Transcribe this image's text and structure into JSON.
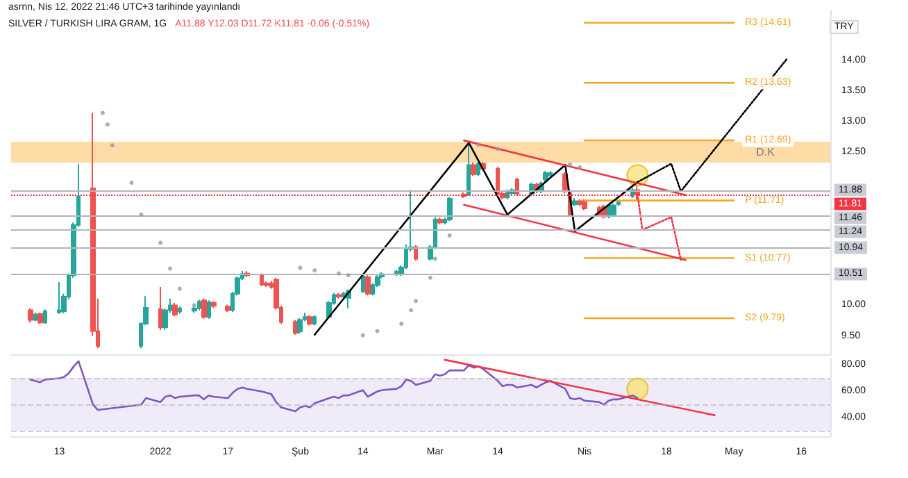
{
  "chart_data": [
    {
      "type": "candlestick",
      "title": "SILVER / TURKISH LIRA GRAM, 1G",
      "subtitle": "A11.88 Y12.03 D11.72 K11.81 -0.06 (-0.51%)",
      "ylabel": "TRY",
      "annotations": [
        "asrnn, Nis 12, 2022 21:46 UTC+3 tarihinde yayınlandı"
      ],
      "x": [
        "2021-12-07",
        "2021-12-08",
        "2021-12-09",
        "2021-12-10",
        "2021-12-13",
        "2021-12-14",
        "2021-12-15",
        "2021-12-16",
        "2021-12-17",
        "2021-12-20",
        "2021-12-21",
        "2021-12-30",
        "2021-12-31",
        "2022-01-03",
        "2022-01-04",
        "2022-01-05",
        "2022-01-06",
        "2022-01-07",
        "2022-01-10",
        "2022-01-11",
        "2022-01-12",
        "2022-01-13",
        "2022-01-14",
        "2022-01-17",
        "2022-01-18",
        "2022-01-19",
        "2022-01-20",
        "2022-01-21",
        "2022-01-24",
        "2022-01-25",
        "2022-01-26",
        "2022-01-27",
        "2022-01-28",
        "2022-01-31",
        "2022-02-01",
        "2022-02-02",
        "2022-02-03",
        "2022-02-04",
        "2022-02-07",
        "2022-02-08",
        "2022-02-09",
        "2022-02-10",
        "2022-02-11",
        "2022-02-14",
        "2022-02-15",
        "2022-02-16",
        "2022-02-17",
        "2022-02-18",
        "2022-02-21",
        "2022-02-22",
        "2022-02-23",
        "2022-02-24",
        "2022-02-25",
        "2022-02-28",
        "2022-03-01",
        "2022-03-02",
        "2022-03-03",
        "2022-03-04",
        "2022-03-07",
        "2022-03-08",
        "2022-03-09",
        "2022-03-10",
        "2022-03-11",
        "2022-03-14",
        "2022-03-15",
        "2022-03-16",
        "2022-03-17",
        "2022-03-18",
        "2022-03-21",
        "2022-03-22",
        "2022-03-23",
        "2022-03-24",
        "2022-03-25",
        "2022-03-28",
        "2022-03-29",
        "2022-03-30",
        "2022-03-31",
        "2022-04-01",
        "2022-04-04",
        "2022-04-05",
        "2022-04-06",
        "2022-04-07",
        "2022-04-08",
        "2022-04-11",
        "2022-04-12"
      ],
      "ohlc": [
        [
          9.92,
          9.95,
          9.72,
          9.76
        ],
        [
          9.76,
          9.88,
          9.74,
          9.85
        ],
        [
          9.86,
          9.88,
          9.7,
          9.72
        ],
        [
          9.72,
          9.93,
          9.7,
          9.9
        ],
        [
          9.89,
          10.38,
          9.86,
          9.92
        ],
        [
          9.9,
          10.19,
          9.87,
          10.14
        ],
        [
          10.14,
          10.52,
          10.1,
          10.49
        ],
        [
          10.49,
          11.35,
          10.45,
          11.31
        ],
        [
          11.31,
          12.31,
          11.28,
          11.78
        ],
        [
          11.91,
          13.14,
          9.5,
          9.58
        ],
        [
          9.58,
          10.11,
          9.3,
          9.34
        ],
        [
          9.34,
          9.72,
          9.3,
          9.7
        ],
        [
          9.7,
          10.15,
          9.68,
          9.96
        ],
        [
          9.94,
          10.3,
          9.6,
          9.64
        ],
        [
          9.64,
          9.95,
          9.6,
          9.92
        ],
        [
          9.92,
          10.11,
          9.88,
          10.0
        ],
        [
          10.0,
          10.04,
          9.82,
          9.85
        ],
        [
          9.9,
          9.98,
          9.86,
          9.95
        ],
        [
          9.91,
          9.98,
          9.88,
          9.95
        ],
        [
          9.95,
          10.09,
          9.92,
          10.06
        ],
        [
          10.08,
          10.11,
          9.78,
          9.81
        ],
        [
          9.81,
          10.08,
          9.78,
          10.05
        ],
        [
          10.04,
          10.07,
          9.96,
          9.99
        ],
        [
          9.98,
          10.01,
          9.89,
          9.92
        ],
        [
          9.92,
          10.22,
          9.89,
          10.19
        ],
        [
          10.19,
          10.47,
          10.16,
          10.44
        ],
        [
          10.44,
          10.56,
          10.41,
          10.51
        ],
        [
          10.52,
          10.56,
          10.46,
          10.49
        ],
        [
          10.49,
          10.52,
          10.31,
          10.34
        ],
        [
          10.36,
          10.39,
          10.3,
          10.33
        ],
        [
          10.36,
          10.4,
          10.27,
          10.3
        ],
        [
          10.42,
          10.45,
          9.93,
          9.96
        ],
        [
          9.96,
          9.99,
          9.7,
          9.73
        ],
        [
          9.73,
          9.76,
          9.52,
          9.55
        ],
        [
          9.57,
          9.79,
          9.54,
          9.76
        ],
        [
          9.77,
          9.88,
          9.74,
          9.81
        ],
        [
          9.81,
          9.84,
          9.67,
          9.7
        ],
        [
          9.7,
          9.84,
          9.67,
          9.81
        ],
        [
          9.81,
          10.07,
          9.78,
          10.04
        ],
        [
          10.04,
          10.2,
          10.01,
          10.17
        ],
        [
          10.17,
          10.2,
          10.11,
          10.14
        ],
        [
          10.14,
          10.22,
          10.12,
          10.19
        ],
        [
          10.12,
          10.26,
          9.95,
          10.23
        ],
        [
          10.23,
          10.5,
          10.2,
          10.47
        ],
        [
          10.46,
          10.49,
          10.16,
          10.19
        ],
        [
          10.19,
          10.36,
          10.16,
          10.33
        ],
        [
          10.33,
          10.49,
          10.3,
          10.46
        ],
        [
          10.47,
          10.54,
          10.44,
          10.51
        ],
        [
          10.51,
          10.58,
          10.48,
          10.55
        ],
        [
          10.51,
          10.65,
          10.48,
          10.62
        ],
        [
          10.62,
          10.99,
          10.59,
          10.91
        ],
        [
          10.92,
          11.88,
          10.88,
          10.95
        ],
        [
          10.95,
          10.98,
          10.73,
          10.76
        ],
        [
          10.76,
          10.98,
          10.73,
          10.95
        ],
        [
          10.95,
          11.44,
          10.92,
          11.4
        ],
        [
          11.4,
          11.43,
          11.32,
          11.35
        ],
        [
          11.35,
          11.43,
          11.32,
          11.4
        ],
        [
          11.4,
          11.77,
          11.37,
          11.74
        ],
        [
          11.81,
          11.84,
          11.75,
          11.78
        ],
        [
          11.82,
          12.65,
          11.79,
          12.29
        ],
        [
          12.29,
          12.33,
          12.11,
          12.14
        ],
        [
          12.14,
          12.34,
          12.11,
          12.31
        ],
        [
          12.31,
          12.34,
          12.2,
          12.23
        ],
        [
          12.23,
          12.26,
          11.79,
          11.82
        ],
        [
          11.82,
          11.85,
          11.73,
          11.76
        ],
        [
          11.76,
          11.89,
          11.73,
          11.86
        ],
        [
          11.83,
          11.91,
          11.8,
          11.88
        ],
        [
          12.05,
          12.08,
          11.79,
          11.82
        ],
        [
          11.83,
          12.0,
          11.8,
          11.97
        ],
        [
          11.97,
          12.0,
          11.83,
          11.86
        ],
        [
          11.86,
          12.02,
          11.83,
          11.99
        ],
        [
          12.05,
          12.19,
          12.02,
          12.16
        ],
        [
          12.12,
          12.19,
          12.09,
          12.16
        ],
        [
          12.14,
          12.17,
          11.83,
          11.86
        ],
        [
          11.83,
          11.86,
          11.45,
          11.48
        ],
        [
          11.65,
          11.75,
          11.62,
          11.7
        ],
        [
          11.7,
          11.73,
          11.62,
          11.65
        ],
        [
          11.7,
          11.73,
          11.55,
          11.58
        ],
        [
          11.59,
          11.62,
          11.45,
          11.48
        ],
        [
          11.61,
          11.64,
          11.42,
          11.45
        ],
        [
          11.45,
          11.66,
          11.42,
          11.63
        ],
        [
          11.48,
          11.66,
          11.45,
          11.63
        ],
        [
          11.65,
          11.71,
          11.62,
          11.68
        ],
        [
          11.78,
          11.91,
          11.75,
          11.88
        ],
        [
          11.88,
          12.03,
          11.72,
          11.81
        ]
      ],
      "series": [
        {
          "type": "scatter",
          "color": "#9598a1",
          "marker": "circle",
          "x": [
            "2021-12-22",
            "2021-12-23",
            "2021-12-24",
            "2021-12-28",
            "2021-12-30",
            "2022-01-03",
            "2022-01-05",
            "2022-01-07",
            "2022-01-10",
            "2022-02-01",
            "2022-02-04",
            "2022-02-09",
            "2022-02-11",
            "2022-02-14",
            "2022-02-17",
            "2022-02-22",
            "2022-02-24",
            "2022-02-25",
            "2022-02-28",
            "2022-03-01",
            "2022-03-04",
            "2022-03-10",
            "2022-03-14",
            "2022-03-29",
            "2022-03-31"
          ],
          "values": [
            13.14,
            12.95,
            12.61,
            12.0,
            11.48,
            11.02,
            10.6,
            10.27,
            10.0,
            10.61,
            10.57,
            10.52,
            10.49,
            9.51,
            9.58,
            9.7,
            9.92,
            10.07,
            10.45,
            10.76,
            11.14,
            12.62,
            12.55,
            12.3,
            12.25
          ]
        },
        {
          "type": "line",
          "name": "R3 (14.61)",
          "color": "#f5a623",
          "x": [
            "2022-04-01",
            "2022-05-02"
          ],
          "values": [
            14.61,
            14.61
          ]
        },
        {
          "type": "line",
          "name": "R2 (13.63)",
          "color": "#f5a623",
          "x": [
            "2022-04-01",
            "2022-05-02"
          ],
          "values": [
            13.63,
            13.63
          ]
        },
        {
          "type": "line",
          "name": "R1 (12.69)",
          "color": "#f5a623",
          "x": [
            "2022-04-01",
            "2022-05-02"
          ],
          "values": [
            12.69,
            12.69
          ]
        },
        {
          "type": "line",
          "name": "P (11.71)",
          "color": "#f5a623",
          "x": [
            "2022-04-01",
            "2022-05-02"
          ],
          "values": [
            11.71,
            11.71
          ]
        },
        {
          "type": "line",
          "name": "S1 (10.77)",
          "color": "#f5a623",
          "x": [
            "2022-04-01",
            "2022-05-02"
          ],
          "values": [
            10.77,
            10.77
          ]
        },
        {
          "type": "line",
          "name": "S2 (9.79)",
          "color": "#f5a623",
          "x": [
            "2022-04-01",
            "2022-05-02"
          ],
          "values": [
            9.79,
            9.79
          ]
        },
        {
          "type": "line",
          "color": "#000000",
          "line_style": "solid",
          "x": [
            "2022-02-04",
            "2022-03-08",
            "2022-03-16",
            "2022-03-28",
            "2022-03-30",
            "2022-04-12"
          ],
          "values": [
            9.52,
            12.65,
            11.48,
            12.29,
            11.21,
            12.01
          ]
        },
        {
          "type": "line",
          "color": "#f23645",
          "line_style": "solid",
          "x": [
            "2022-03-07",
            "2022-04-22"
          ],
          "values": [
            12.69,
            11.8
          ]
        },
        {
          "type": "line",
          "color": "#f23645",
          "line_style": "solid",
          "x": [
            "2022-03-07",
            "2022-04-22"
          ],
          "values": [
            11.64,
            10.74
          ]
        },
        {
          "type": "line",
          "color": "#000000",
          "line_style": "dotted",
          "x": [
            "2022-04-12",
            "2022-04-19",
            "2022-04-21",
            "2022-05-13"
          ],
          "values": [
            12.01,
            12.31,
            11.86,
            14.02
          ]
        },
        {
          "type": "line",
          "color": "#f23645",
          "line_style": "dotted",
          "x": [
            "2022-04-12",
            "2022-04-13",
            "2022-04-19",
            "2022-04-21"
          ],
          "values": [
            11.82,
            11.23,
            11.44,
            10.74
          ]
        },
        {
          "type": "bubble",
          "color": "#f7e27a",
          "x": [
            "2022-04-12"
          ],
          "values": [
            12.12
          ],
          "sizes": [
            1
          ]
        }
      ],
      "bands": [
        {
          "axis": "y",
          "from": 12.33,
          "to": 12.67,
          "label": "D.K",
          "color": "#ffcc80"
        }
      ],
      "ref_lines": [
        {
          "axis": "y",
          "value": 11.88,
          "label": "11.88"
        },
        {
          "axis": "y",
          "value": 11.81,
          "label": "11.81",
          "color": "#f23645",
          "line_style": "dotted"
        },
        {
          "axis": "y",
          "value": 11.46,
          "label": "11.46"
        },
        {
          "axis": "y",
          "value": 11.24,
          "label": "11.24"
        },
        {
          "axis": "y",
          "value": 10.94,
          "label": "10.94"
        },
        {
          "axis": "y",
          "value": 10.51,
          "label": "10.51"
        }
      ],
      "xlim": [
        "2021-12-03",
        "2022-05-22"
      ],
      "ylim": [
        9.2,
        14.8
      ],
      "yticks": [
        {
          "value": 9.5,
          "label": "9.50"
        },
        {
          "value": 10,
          "label": "10.00"
        },
        {
          "value": 12.5,
          "label": "12.50"
        },
        {
          "value": 13,
          "label": "13.00"
        },
        {
          "value": 13.5,
          "label": "13.50"
        },
        {
          "value": 14,
          "label": "14.00"
        }
      ],
      "tick_labels": "y",
      "legend": false
    },
    {
      "type": "line",
      "x": [
        "2021-12-07",
        "2021-12-08",
        "2021-12-09",
        "2021-12-10",
        "2021-12-13",
        "2021-12-14",
        "2021-12-15",
        "2021-12-16",
        "2021-12-17",
        "2021-12-20",
        "2021-12-21",
        "2021-12-30",
        "2021-12-31",
        "2022-01-03",
        "2022-01-04",
        "2022-01-05",
        "2022-01-06",
        "2022-01-07",
        "2022-01-10",
        "2022-01-11",
        "2022-01-12",
        "2022-01-13",
        "2022-01-14",
        "2022-01-17",
        "2022-01-18",
        "2022-01-19",
        "2022-01-20",
        "2022-01-21",
        "2022-01-24",
        "2022-01-25",
        "2022-01-26",
        "2022-01-27",
        "2022-01-28",
        "2022-01-31",
        "2022-02-01",
        "2022-02-02",
        "2022-02-03",
        "2022-02-04",
        "2022-02-07",
        "2022-02-08",
        "2022-02-09",
        "2022-02-10",
        "2022-02-11",
        "2022-02-14",
        "2022-02-15",
        "2022-02-16",
        "2022-02-17",
        "2022-02-18",
        "2022-02-21",
        "2022-02-22",
        "2022-02-23",
        "2022-02-24",
        "2022-02-25",
        "2022-02-28",
        "2022-03-01",
        "2022-03-02",
        "2022-03-03",
        "2022-03-04",
        "2022-03-07",
        "2022-03-08",
        "2022-03-09",
        "2022-03-10",
        "2022-03-11",
        "2022-03-14",
        "2022-03-15",
        "2022-03-16",
        "2022-03-17",
        "2022-03-18",
        "2022-03-21",
        "2022-03-22",
        "2022-03-23",
        "2022-03-24",
        "2022-03-25",
        "2022-03-28",
        "2022-03-29",
        "2022-03-30",
        "2022-03-31",
        "2022-04-01",
        "2022-04-04",
        "2022-04-05",
        "2022-04-06",
        "2022-04-07",
        "2022-04-08",
        "2022-04-11",
        "2022-04-12"
      ],
      "series": [
        {
          "color": "#7e57c2",
          "marker": "none",
          "values": [
            69,
            68,
            67,
            69,
            70,
            71,
            74,
            79,
            83,
            50,
            46,
            50,
            55,
            52,
            56,
            57,
            55,
            56,
            57,
            57,
            54,
            57,
            56,
            55,
            59,
            62,
            63,
            62,
            60,
            59,
            58,
            52,
            48,
            45,
            48,
            49,
            48,
            51,
            55,
            56,
            55,
            57,
            57,
            61,
            56,
            58,
            60,
            61,
            62,
            64,
            69,
            68,
            65,
            68,
            73,
            72,
            73,
            76,
            76,
            80,
            78,
            79,
            77,
            68,
            64,
            65,
            65,
            63,
            65,
            63,
            65,
            67,
            68,
            62,
            55,
            54,
            55,
            53,
            52,
            50,
            53,
            54,
            54,
            57,
            55
          ]
        },
        {
          "type": "line",
          "color": "#f23645",
          "marker": "none",
          "x": [
            "2022-03-03",
            "2022-04-28"
          ],
          "values": [
            84,
            42
          ]
        },
        {
          "type": "bubble",
          "color": "#f7e27a",
          "x": [
            "2022-04-12"
          ],
          "values": [
            62
          ],
          "sizes": [
            1
          ]
        }
      ],
      "bands": [
        {
          "axis": "y",
          "from": 30,
          "to": 70,
          "color": "#7e57c2"
        }
      ],
      "ref_lines": [
        {
          "axis": "y",
          "value": 70,
          "line_style": "dashed"
        },
        {
          "axis": "y",
          "value": 50,
          "line_style": "dashed"
        },
        {
          "axis": "y",
          "value": 30,
          "line_style": "dashed"
        }
      ],
      "xlim": [
        "2021-12-03",
        "2022-05-22"
      ],
      "ylim": [
        26,
        85
      ],
      "xticks": [
        {
          "value": "2021-12-13",
          "label": "13"
        },
        {
          "value": "2022-01-03",
          "label": "2022"
        },
        {
          "value": "2022-01-17",
          "label": "17"
        },
        {
          "value": "2022-02-01",
          "label": "Şub"
        },
        {
          "value": "2022-02-14",
          "label": "14"
        },
        {
          "value": "2022-03-01",
          "label": "Mar"
        },
        {
          "value": "2022-03-14",
          "label": "14"
        },
        {
          "value": "2022-04-01",
          "label": "Nis"
        },
        {
          "value": "2022-04-18",
          "label": "18"
        },
        {
          "value": "2022-05-02",
          "label": "May"
        },
        {
          "value": "2022-05-16",
          "label": "16"
        }
      ],
      "yticks": [
        {
          "value": 40,
          "label": "40.00"
        },
        {
          "value": 60,
          "label": "60.00"
        },
        {
          "value": 80,
          "label": "80.00"
        }
      ],
      "legend": false
    }
  ]
}
